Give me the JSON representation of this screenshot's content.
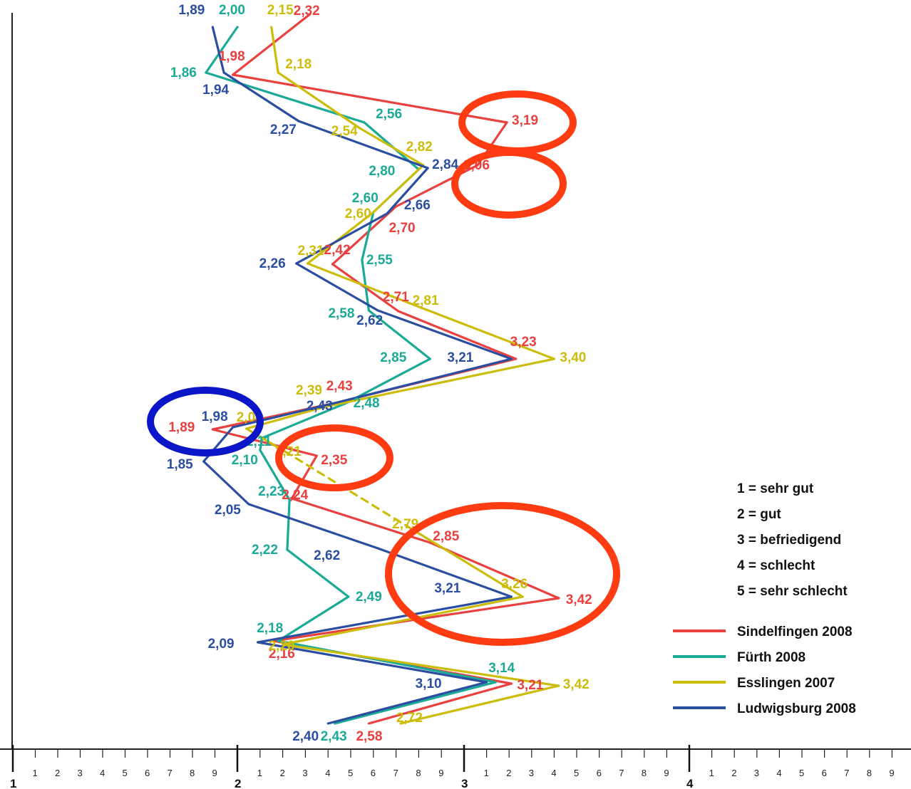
{
  "chart_data": {
    "type": "line",
    "orientation": "horizontal-values",
    "x_axis": {
      "major_ticks": [
        "1",
        "2",
        "3",
        "4"
      ],
      "minor_ticks": [
        "1",
        "2",
        "3",
        "4",
        "5",
        "6",
        "7",
        "8",
        "9"
      ],
      "range": [
        1,
        4.9
      ]
    },
    "scale_legend": [
      "1 = sehr gut",
      "2 = gut",
      "3 = befriedigend",
      "4 = schlecht",
      "5 = sehr schlecht"
    ],
    "series": [
      {
        "name": "Sindelfingen 2008",
        "color": "#e8413f",
        "values": [
          2.32,
          1.98,
          3.19,
          3.06,
          2.7,
          2.42,
          2.71,
          3.23,
          2.43,
          1.89,
          2.35,
          2.24,
          2.85,
          3.42,
          2.16,
          3.21,
          2.58
        ]
      },
      {
        "name": "Fürth 2008",
        "color": "#1aaa96",
        "values": [
          2.0,
          1.86,
          2.56,
          2.8,
          2.6,
          2.55,
          2.58,
          2.85,
          2.48,
          2.11,
          2.1,
          2.23,
          2.22,
          2.49,
          2.18,
          3.14,
          2.43
        ]
      },
      {
        "name": "Esslingen 2007",
        "color": "#cdbd0b",
        "values": [
          2.15,
          2.18,
          2.54,
          2.82,
          2.6,
          2.31,
          2.81,
          3.4,
          2.39,
          2.04,
          2.21,
          2.79,
          3.26,
          2.2,
          3.42,
          2.72
        ]
      },
      {
        "name": "Ludwigsburg 2008",
        "color": "#2c4ea0",
        "values": [
          1.89,
          1.94,
          2.27,
          2.84,
          2.66,
          2.26,
          2.62,
          3.21,
          2.43,
          1.98,
          1.85,
          2.05,
          2.62,
          3.21,
          2.09,
          3.1,
          2.4
        ]
      }
    ],
    "highlight_colors": {
      "red": "#ff3b12",
      "blue": "#0b16c8"
    }
  }
}
